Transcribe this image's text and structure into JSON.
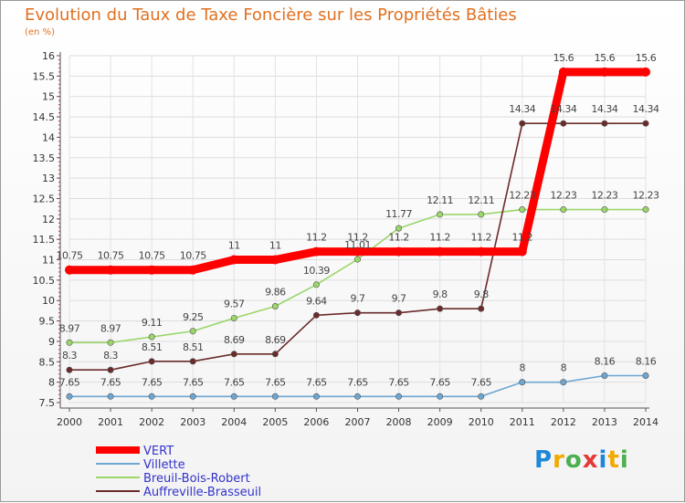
{
  "chart_data": {
    "type": "line",
    "title": "Evolution du Taux de Taxe Foncière sur les Propriétés Bâties",
    "unit_label": "(en %)",
    "xlabel": "",
    "ylabel": "",
    "ylim": [
      7.5,
      16
    ],
    "y_ticks": [
      "7.5",
      "8",
      "8.5",
      "9",
      "9.5",
      "10",
      "10.5",
      "11",
      "11.5",
      "12",
      "12.5",
      "13",
      "13.5",
      "14",
      "14.5",
      "15",
      "15.5",
      "16"
    ],
    "categories": [
      "2000",
      "2001",
      "2002",
      "2003",
      "2004",
      "2005",
      "2006",
      "2007",
      "2008",
      "2009",
      "2010",
      "2011",
      "2012",
      "2013",
      "2014"
    ],
    "series": [
      {
        "name": "VERT",
        "color": "#ff0000",
        "values": [
          10.75,
          10.75,
          10.75,
          10.75,
          11,
          11,
          11.2,
          11.2,
          11.2,
          11.2,
          11.2,
          11.2,
          15.6,
          15.6,
          15.6
        ],
        "labels": [
          "10.75",
          "10.75",
          "10.75",
          "10.75",
          "11",
          "11",
          "11.2",
          "11.2",
          "11.2",
          "11.2",
          "11.2",
          "11.2",
          "15.6",
          "15.6",
          "15.6"
        ]
      },
      {
        "name": "Villette",
        "color": "#6ea6d2",
        "values": [
          7.65,
          7.65,
          7.65,
          7.65,
          7.65,
          7.65,
          7.65,
          7.65,
          7.65,
          7.65,
          7.65,
          8,
          8,
          8.16,
          8.16
        ],
        "labels": [
          "7.65",
          "7.65",
          "7.65",
          "7.65",
          "7.65",
          "7.65",
          "7.65",
          "7.65",
          "7.65",
          "7.65",
          "7.65",
          "8",
          "8",
          "8.16",
          "8.16"
        ]
      },
      {
        "name": "Breuil-Bois-Robert",
        "color": "#9bd66a",
        "values": [
          8.97,
          8.97,
          9.11,
          9.25,
          9.57,
          9.86,
          10.39,
          11.01,
          11.77,
          12.11,
          12.11,
          12.23,
          12.23,
          12.23,
          12.23
        ],
        "labels": [
          "8.97",
          "8.97",
          "9.11",
          "9.25",
          "9.57",
          "9.86",
          "10.39",
          "11.01",
          "11.77",
          "12.11",
          "12.11",
          "12.23",
          "12.23",
          "12.23",
          "12.23"
        ]
      },
      {
        "name": "Auffreville-Brasseuil",
        "color": "#6b2b2b",
        "values": [
          8.3,
          8.3,
          8.51,
          8.51,
          8.69,
          8.69,
          9.64,
          9.7,
          9.7,
          9.8,
          9.8,
          14.34,
          14.34,
          14.34,
          14.34
        ],
        "labels": [
          "8.3",
          "8.3",
          "8.51",
          "8.51",
          "8.69",
          "8.69",
          "9.64",
          "9.7",
          "9.7",
          "9.8",
          "9.8",
          "14.34",
          "14.34",
          "14.34",
          "14.34"
        ]
      }
    ],
    "grid": true,
    "legend_position": "bottom-left"
  },
  "logo": {
    "text": "Proxiti",
    "letters": [
      "P",
      "r",
      "o",
      "x",
      "i",
      "t",
      "i"
    ],
    "colors": [
      "#1e88d8",
      "#f2a900",
      "#4caf50",
      "#e53935",
      "#1e88d8",
      "#f2a900",
      "#4caf50"
    ]
  }
}
